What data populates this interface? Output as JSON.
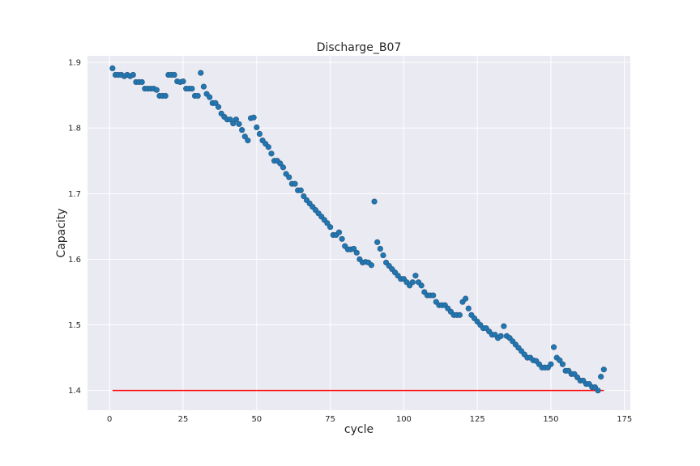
{
  "chart_data": {
    "type": "scatter",
    "title": "Discharge_B07",
    "xlabel": "cycle",
    "ylabel": "Capacity",
    "xlim": [
      -7.5,
      177
    ],
    "ylim": [
      1.37,
      1.91
    ],
    "xticks": [
      0,
      25,
      50,
      75,
      100,
      125,
      150,
      175
    ],
    "xtick_labels": [
      "0",
      "25",
      "50",
      "75",
      "100",
      "125",
      "150",
      "175"
    ],
    "yticks": [
      1.4,
      1.5,
      1.6,
      1.7,
      1.8,
      1.9
    ],
    "ytick_labels": [
      "1.4",
      "1.5",
      "1.6",
      "1.7",
      "1.8",
      "1.9"
    ],
    "grid": true,
    "background": "#eaeaf2",
    "marker_color": "#1f77b4",
    "marker_edge_color": "#2d5f87",
    "threshold_color": "#ff0000",
    "threshold": {
      "y": 1.4,
      "x_start": 1,
      "x_end": 168
    },
    "x": [
      1,
      2,
      3,
      4,
      5,
      6,
      7,
      8,
      9,
      10,
      11,
      12,
      13,
      14,
      15,
      16,
      17,
      18,
      19,
      20,
      21,
      22,
      23,
      24,
      25,
      26,
      27,
      28,
      29,
      30,
      31,
      32,
      33,
      34,
      35,
      36,
      37,
      38,
      39,
      40,
      41,
      42,
      43,
      44,
      45,
      46,
      47,
      48,
      49,
      50,
      51,
      52,
      53,
      54,
      55,
      56,
      57,
      58,
      59,
      60,
      61,
      62,
      63,
      64,
      65,
      66,
      67,
      68,
      69,
      70,
      71,
      72,
      73,
      74,
      75,
      76,
      77,
      78,
      79,
      80,
      81,
      82,
      83,
      84,
      85,
      86,
      87,
      88,
      89,
      90,
      91,
      92,
      93,
      94,
      95,
      96,
      97,
      98,
      99,
      100,
      101,
      102,
      103,
      104,
      105,
      106,
      107,
      108,
      109,
      110,
      111,
      112,
      113,
      114,
      115,
      116,
      117,
      118,
      119,
      120,
      121,
      122,
      123,
      124,
      125,
      126,
      127,
      128,
      129,
      130,
      131,
      132,
      133,
      134,
      135,
      136,
      137,
      138,
      139,
      140,
      141,
      142,
      143,
      144,
      145,
      146,
      147,
      148,
      149,
      150,
      151,
      152,
      153,
      154,
      155,
      156,
      157,
      158,
      159,
      160,
      161,
      162,
      163,
      164,
      165,
      166,
      167,
      168
    ],
    "y": [
      1.891,
      1.881,
      1.881,
      1.881,
      1.879,
      1.881,
      1.879,
      1.881,
      1.87,
      1.87,
      1.87,
      1.86,
      1.86,
      1.86,
      1.86,
      1.858,
      1.849,
      1.849,
      1.849,
      1.881,
      1.881,
      1.881,
      1.871,
      1.87,
      1.871,
      1.86,
      1.86,
      1.86,
      1.849,
      1.849,
      1.884,
      1.863,
      1.852,
      1.847,
      1.838,
      1.838,
      1.832,
      1.822,
      1.817,
      1.813,
      1.813,
      1.807,
      1.813,
      1.806,
      1.797,
      1.787,
      1.781,
      1.815,
      1.816,
      1.801,
      1.791,
      1.781,
      1.776,
      1.771,
      1.761,
      1.75,
      1.75,
      1.746,
      1.74,
      1.73,
      1.725,
      1.715,
      1.715,
      1.705,
      1.705,
      1.696,
      1.69,
      1.685,
      1.68,
      1.675,
      1.67,
      1.665,
      1.66,
      1.655,
      1.649,
      1.637,
      1.637,
      1.641,
      1.631,
      1.62,
      1.615,
      1.615,
      1.616,
      1.61,
      1.6,
      1.595,
      1.596,
      1.595,
      1.591,
      1.688,
      1.626,
      1.616,
      1.606,
      1.595,
      1.59,
      1.585,
      1.58,
      1.575,
      1.57,
      1.57,
      1.565,
      1.56,
      1.565,
      1.575,
      1.565,
      1.56,
      1.55,
      1.545,
      1.545,
      1.545,
      1.535,
      1.53,
      1.53,
      1.53,
      1.525,
      1.52,
      1.515,
      1.515,
      1.515,
      1.535,
      1.54,
      1.525,
      1.515,
      1.51,
      1.505,
      1.5,
      1.495,
      1.495,
      1.49,
      1.485,
      1.485,
      1.48,
      1.483,
      1.498,
      1.483,
      1.48,
      1.475,
      1.47,
      1.465,
      1.46,
      1.455,
      1.45,
      1.45,
      1.446,
      1.445,
      1.44,
      1.435,
      1.435,
      1.435,
      1.44,
      1.466,
      1.45,
      1.446,
      1.44,
      1.43,
      1.43,
      1.425,
      1.425,
      1.42,
      1.415,
      1.415,
      1.41,
      1.41,
      1.405,
      1.405,
      1.4,
      1.421,
      1.432
    ]
  }
}
